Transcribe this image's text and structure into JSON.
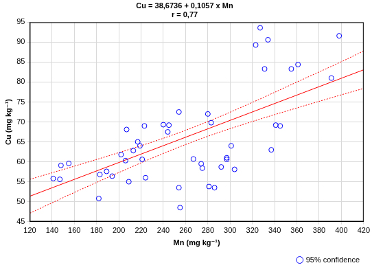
{
  "chart_data": {
    "type": "scatter",
    "title": [
      "Cu = 38,6736 + 0,1057 x Mn",
      "r = 0,77"
    ],
    "x_label": "Mn (mg kg⁻¹)",
    "y_label": "Cu (mg kg⁻¹)",
    "xlim": [
      120,
      420
    ],
    "xticks": [
      120,
      140,
      160,
      180,
      200,
      220,
      240,
      260,
      280,
      300,
      320,
      340,
      360,
      380,
      400,
      420
    ],
    "ylim": [
      45,
      95
    ],
    "yticks": [
      45,
      50,
      55,
      60,
      65,
      70,
      75,
      80,
      85,
      90,
      95
    ],
    "grid": true,
    "legend": "bottom-right",
    "series": [
      {
        "name": "95% confidence",
        "type": "scatter",
        "marker": "circle",
        "color": "#0000ff",
        "x": [
          141,
          147,
          148,
          155,
          182,
          183,
          189,
          194,
          202,
          206,
          207,
          209,
          213,
          217,
          219,
          221,
          223,
          224,
          240,
          244,
          245,
          254,
          254,
          255,
          267,
          274,
          275,
          280,
          281,
          283,
          286,
          292,
          297,
          297,
          301,
          304,
          323,
          327,
          331,
          334,
          337,
          341,
          345,
          355,
          361,
          391,
          398
        ],
        "values": [
          55.8,
          55.6,
          59.1,
          59.6,
          50.8,
          56.8,
          57.6,
          56.4,
          61.8,
          60.3,
          68.1,
          55,
          62.8,
          65,
          64,
          60.6,
          69,
          56,
          69.3,
          67.5,
          69.2,
          72.5,
          53.5,
          48.5,
          60.7,
          59.5,
          58.4,
          72,
          53.8,
          69.8,
          53.5,
          58.7,
          61,
          60.6,
          64,
          58.1,
          89.3,
          93.6,
          83.3,
          90.6,
          63,
          69.2,
          69,
          83.3,
          84.4,
          81,
          91.6
        ]
      },
      {
        "type": "line",
        "line_style": "solid",
        "color": "#ff0000",
        "x": [
          120,
          420
        ],
        "values": [
          51.36,
          83.07
        ]
      },
      {
        "type": "line",
        "line_style": "dotted",
        "color": "#ff0000",
        "x": [
          120,
          160,
          200,
          240,
          280,
          320,
          360,
          400,
          420
        ],
        "values": [
          55.6,
          58.9,
          62.3,
          65.9,
          70.1,
          74.9,
          80.0,
          85.1,
          87.8
        ]
      },
      {
        "type": "line",
        "line_style": "dotted",
        "color": "#ff0000",
        "x": [
          120,
          160,
          200,
          240,
          280,
          320,
          360,
          400,
          420
        ],
        "values": [
          47.1,
          52.3,
          57.3,
          62.1,
          66.4,
          70.1,
          73.5,
          76.8,
          78.4
        ]
      }
    ]
  }
}
